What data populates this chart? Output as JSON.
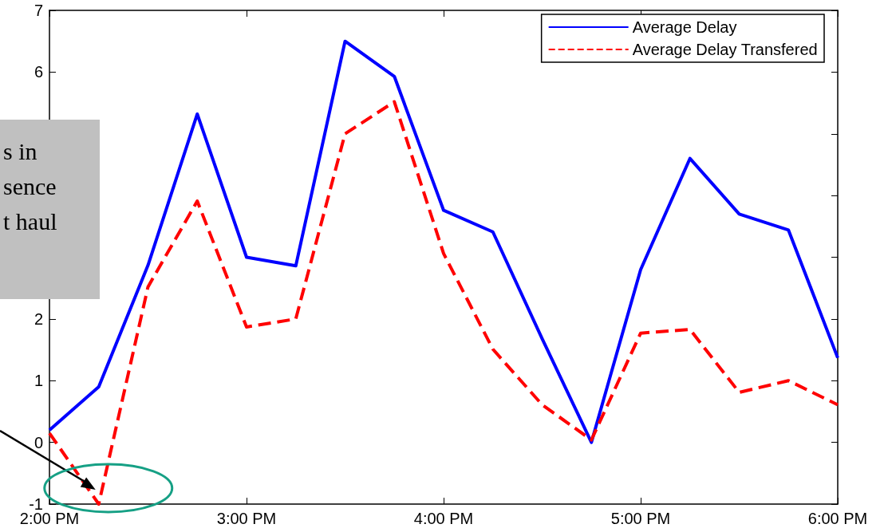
{
  "chart_data": {
    "type": "line",
    "x": [
      14,
      14.25,
      14.5,
      14.75,
      15,
      15.25,
      15.5,
      15.75,
      16,
      16.25,
      16.5,
      16.75,
      17,
      17.25,
      17.5,
      17.75,
      18
    ],
    "series": [
      {
        "name": "Average Delay",
        "color": "#0000ff",
        "line_style": "solid",
        "values": [
          0.2,
          0.9,
          2.87,
          5.32,
          3.0,
          2.86,
          6.5,
          5.93,
          3.76,
          3.41,
          1.68,
          0.0,
          2.8,
          4.6,
          3.7,
          3.44,
          1.37
        ]
      },
      {
        "name": "Average Delay Transfered",
        "color": "#ff0000",
        "line_style": "dashed",
        "values": [
          0.15,
          -1.0,
          2.52,
          3.91,
          1.87,
          2.0,
          5.0,
          5.52,
          3.06,
          1.51,
          0.61,
          0.04,
          1.77,
          1.83,
          0.81,
          1.0,
          0.61
        ]
      }
    ],
    "xlim": [
      14,
      18
    ],
    "xticks": [
      {
        "value": 14,
        "label": "2:00 PM"
      },
      {
        "value": 15,
        "label": "3:00 PM"
      },
      {
        "value": 16,
        "label": "4:00 PM"
      },
      {
        "value": 17,
        "label": "5:00 PM"
      },
      {
        "value": 18,
        "label": "6:00 PM"
      }
    ],
    "ylim": [
      -1,
      7
    ],
    "yticks": [
      -1,
      0,
      1,
      2,
      {
        "value": 3,
        "label": null
      },
      {
        "value": 4,
        "label": null
      },
      {
        "value": 5,
        "label": null
      },
      6,
      7
    ],
    "marker": "none",
    "legend": "top right",
    "annotations": [
      "s in\nsence\nt haul"
    ]
  }
}
